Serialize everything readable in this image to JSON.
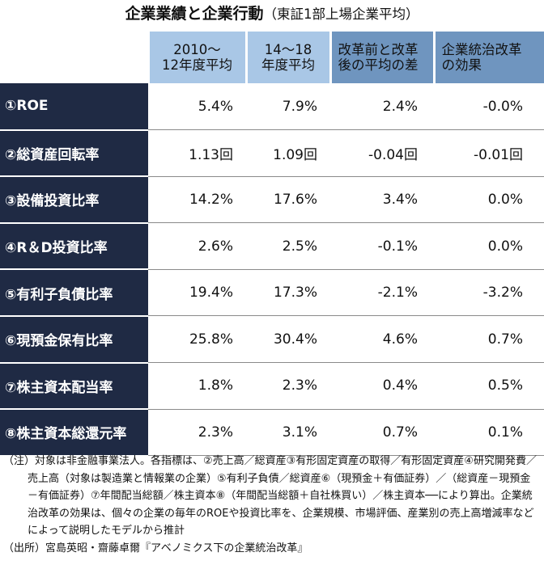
{
  "title": {
    "main": "企業業績と企業行動",
    "sub": "（東証1部上場企業平均）"
  },
  "columns": [
    {
      "line1": "2010〜",
      "line2": "12年度平均"
    },
    {
      "line1": "14〜18",
      "line2": "年度平均"
    },
    {
      "line1": "改革前と改革",
      "line2": "後の平均の差"
    },
    {
      "line1": "企業統治改革",
      "line2": "の効果"
    }
  ],
  "rows": [
    {
      "label": "①ROE",
      "values": [
        "5.4%",
        "7.9%",
        "2.4%",
        "-0.0%"
      ]
    },
    {
      "label": "②総資産回転率",
      "values": [
        "1.13回",
        "1.09回",
        "-0.04回",
        "-0.01回"
      ]
    },
    {
      "label": "③設備投資比率",
      "values": [
        "14.2%",
        "17.6%",
        "3.4%",
        "0.0%"
      ]
    },
    {
      "label": "④R＆D投資比率",
      "values": [
        "2.6%",
        "2.5%",
        "-0.1%",
        "0.0%"
      ]
    },
    {
      "label": "⑤有利子負債比率",
      "values": [
        "19.4%",
        "17.3%",
        "-2.1%",
        "-3.2%"
      ]
    },
    {
      "label": "⑥現預金保有比率",
      "values": [
        "25.8%",
        "30.4%",
        "4.6%",
        "0.7%"
      ]
    },
    {
      "label": "⑦株主資本配当率",
      "values": [
        "1.8%",
        "2.3%",
        "0.4%",
        "0.5%"
      ]
    },
    {
      "label": "⑧株主資本総還元率",
      "values": [
        "2.3%",
        "3.1%",
        "0.7%",
        "0.1%"
      ]
    }
  ],
  "notes": {
    "note": "（注）対象は非金融事業法人。各指標は、②売上高／総資産③有形固定資産の取得／有形固定資産④研究開発費／売上高（対象は製造業と情報業の企業）⑤有利子負債／総資産⑥（現預金＋有価証券）／（総資産－現預金－有価証券）⑦年間配当総額／株主資本⑧（年間配当総額＋自社株買い）／株主資本──により算出。企業統治改革の効果は、個々の企業の毎年のROEや投資比率を、企業規模、市場評価、産業別の売上高増減率などによって説明したモデルから推計",
    "source": "（出所）宮島英昭・齋藤卓爾『アベノミクス下の企業統治改革』"
  },
  "colors": {
    "header_light": "#a9c7e6",
    "header_dark": "#6f95bf",
    "label_bg": "#1f2a44"
  }
}
